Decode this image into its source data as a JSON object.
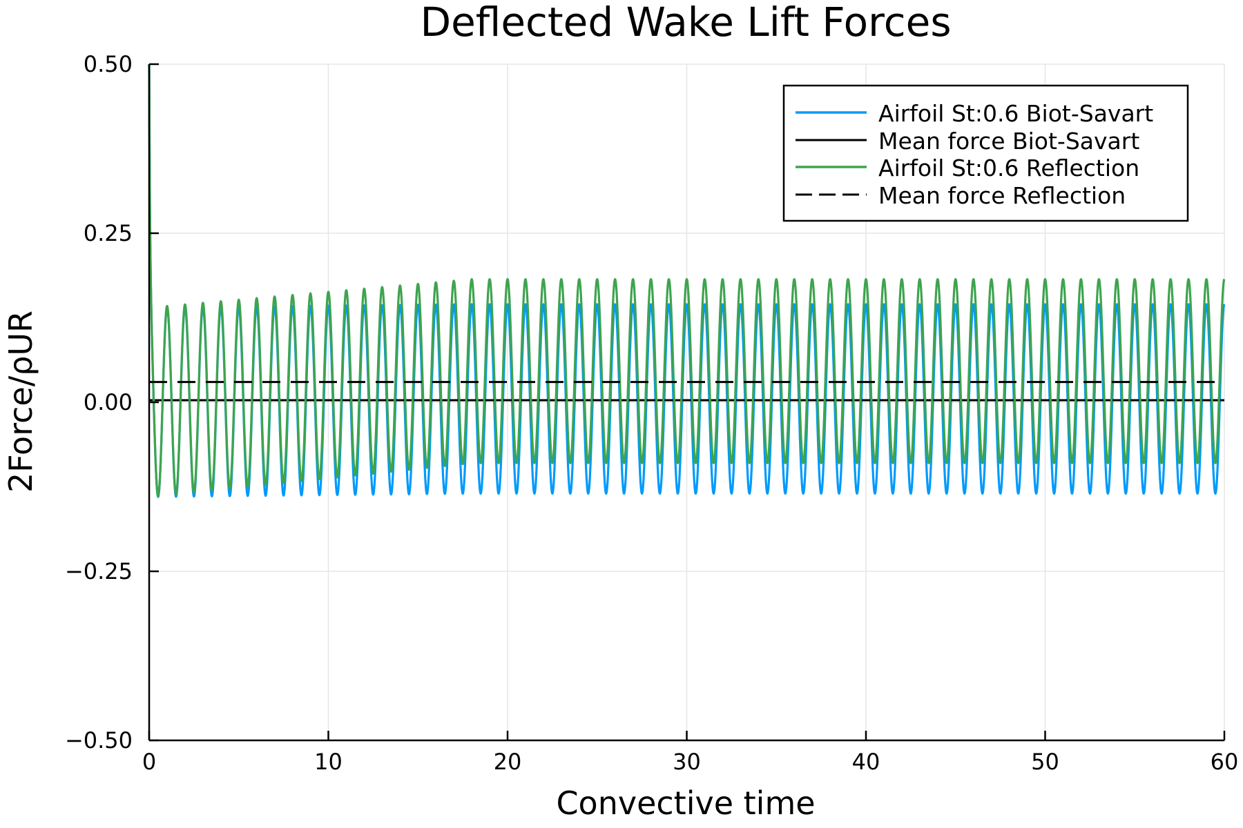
{
  "chart_data": {
    "type": "line",
    "title": "Deflected Wake Lift Forces",
    "xlabel": "Convective time",
    "ylabel": "2Force/ρUR",
    "xlim": [
      0,
      60
    ],
    "ylim": [
      -0.5,
      0.5
    ],
    "xticks": [
      0,
      10,
      20,
      30,
      40,
      50,
      60
    ],
    "xtick_labels": [
      "0",
      "10",
      "20",
      "30",
      "40",
      "50",
      "60"
    ],
    "yticks": [
      -0.5,
      -0.25,
      0.0,
      0.25,
      0.5
    ],
    "ytick_labels": [
      "−0.50",
      "−0.25",
      "0.00",
      "0.25",
      "0.50"
    ],
    "grid": true,
    "legend_position": "top-right",
    "series": [
      {
        "name": "Airfoil St:0.6 Biot-Savart",
        "color": "#009AFA",
        "style": "solid",
        "kind": "oscillation",
        "frequency": 1.0,
        "initial_value": 0.5,
        "max_early": 0.14,
        "max_late": 0.145,
        "min_early": -0.14,
        "min_late": -0.135
      },
      {
        "name": "Mean force Biot-Savart",
        "color": "#000000",
        "style": "solid",
        "kind": "constant",
        "value": 0.003
      },
      {
        "name": "Airfoil St:0.6 Reflection",
        "color": "#3EA44E",
        "style": "solid",
        "kind": "oscillation",
        "frequency": 1.0,
        "initial_value": 0.5,
        "max_early": 0.14,
        "max_late": 0.182,
        "min_early": -0.14,
        "min_late": -0.09
      },
      {
        "name": "Mean force Reflection",
        "color": "#000000",
        "style": "dashed",
        "kind": "constant",
        "value": 0.03
      }
    ]
  }
}
